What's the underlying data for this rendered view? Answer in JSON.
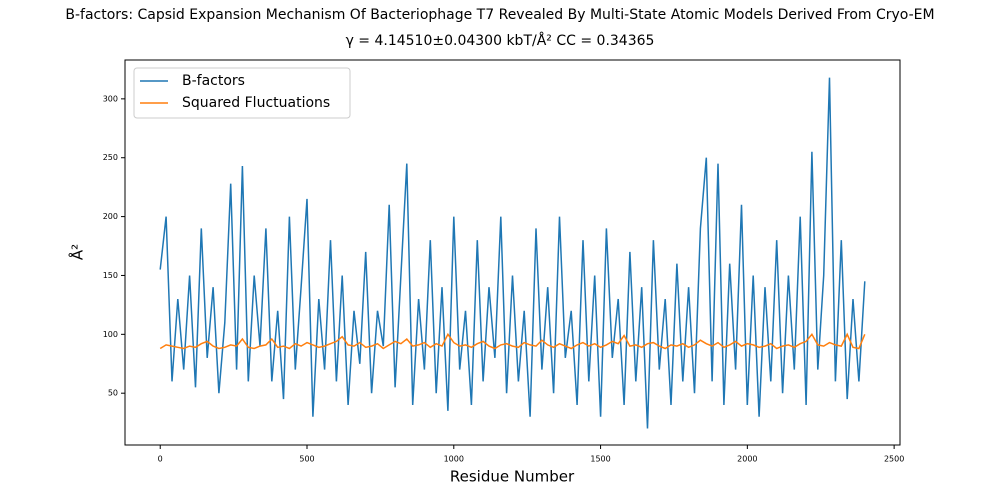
{
  "chart_data": {
    "type": "line",
    "title": "B-factors: Capsid Expansion Mechanism Of Bacteriophage T7 Revealed By Multi-State Atomic Models Derived From Cryo-EM",
    "subtitle": "γ = 4.14510±0.04300 kbT/Å²  CC = 0.34365",
    "x_label": "Residue Number",
    "y_label": "Å²",
    "legend": "upper left",
    "x": [
      0,
      20,
      40,
      60,
      80,
      100,
      120,
      140,
      160,
      180,
      200,
      220,
      240,
      260,
      280,
      300,
      320,
      340,
      360,
      380,
      400,
      420,
      440,
      460,
      480,
      500,
      520,
      540,
      560,
      580,
      600,
      620,
      640,
      660,
      680,
      700,
      720,
      740,
      760,
      780,
      800,
      820,
      840,
      860,
      880,
      900,
      920,
      940,
      960,
      980,
      1000,
      1020,
      1040,
      1060,
      1080,
      1100,
      1120,
      1140,
      1160,
      1180,
      1200,
      1220,
      1240,
      1260,
      1280,
      1300,
      1320,
      1340,
      1360,
      1380,
      1400,
      1420,
      1440,
      1460,
      1480,
      1500,
      1520,
      1540,
      1560,
      1580,
      1600,
      1620,
      1640,
      1660,
      1680,
      1700,
      1720,
      1740,
      1760,
      1780,
      1800,
      1820,
      1840,
      1860,
      1880,
      1900,
      1920,
      1940,
      1960,
      1980,
      2000,
      2020,
      2040,
      2060,
      2080,
      2100,
      2120,
      2140,
      2160,
      2180,
      2200,
      2220,
      2240,
      2260,
      2280,
      2300,
      2320,
      2340,
      2360,
      2380,
      2400
    ],
    "series": [
      {
        "name": "B-factors",
        "color": "#1f77b4",
        "values": [
          155,
          200,
          60,
          130,
          70,
          150,
          55,
          190,
          80,
          140,
          50,
          110,
          228,
          70,
          243,
          60,
          150,
          90,
          190,
          60,
          120,
          45,
          200,
          70,
          140,
          215,
          30,
          130,
          70,
          180,
          60,
          150,
          40,
          120,
          75,
          170,
          50,
          120,
          90,
          210,
          55,
          150,
          245,
          40,
          130,
          70,
          180,
          50,
          140,
          35,
          200,
          70,
          120,
          40,
          180,
          60,
          140,
          80,
          200,
          50,
          150,
          60,
          120,
          30,
          190,
          70,
          140,
          50,
          200,
          80,
          120,
          40,
          180,
          60,
          150,
          30,
          190,
          80,
          130,
          40,
          170,
          60,
          140,
          20,
          180,
          70,
          130,
          40,
          160,
          60,
          140,
          50,
          190,
          250,
          60,
          245,
          40,
          160,
          70,
          210,
          40,
          150,
          30,
          140,
          60,
          180,
          50,
          150,
          70,
          200,
          40,
          255,
          70,
          150,
          318,
          60,
          180,
          45,
          130,
          60,
          145
        ]
      },
      {
        "name": "Squared Fluctuations",
        "color": "#ff7f0e",
        "values": [
          88,
          91,
          90,
          89,
          88,
          90,
          89,
          92,
          94,
          90,
          88,
          89,
          91,
          90,
          96,
          89,
          88,
          90,
          91,
          96,
          89,
          90,
          88,
          92,
          90,
          93,
          91,
          89,
          90,
          92,
          94,
          98,
          91,
          90,
          93,
          89,
          90,
          92,
          88,
          91,
          94,
          92,
          96,
          90,
          91,
          93,
          89,
          92,
          90,
          100,
          93,
          90,
          91,
          89,
          92,
          94,
          90,
          88,
          91,
          92,
          90,
          89,
          93,
          91,
          90,
          95,
          91,
          89,
          92,
          90,
          88,
          91,
          93,
          90,
          92,
          89,
          91,
          94,
          92,
          99,
          90,
          91,
          89,
          92,
          93,
          90,
          88,
          91,
          90,
          92,
          89,
          91,
          95,
          92,
          90,
          93,
          89,
          91,
          94,
          90,
          92,
          91,
          89,
          90,
          92,
          88,
          90,
          91,
          89,
          92,
          94,
          100,
          91,
          90,
          93,
          91,
          90,
          100,
          89,
          88,
          100
        ]
      }
    ],
    "xlim": [
      -120,
      2520
    ],
    "ylim": [
      6,
      333
    ],
    "xticks": [
      0,
      500,
      1000,
      1500,
      2000,
      2500
    ],
    "yticks": [
      50,
      100,
      150,
      200,
      250,
      300
    ]
  }
}
